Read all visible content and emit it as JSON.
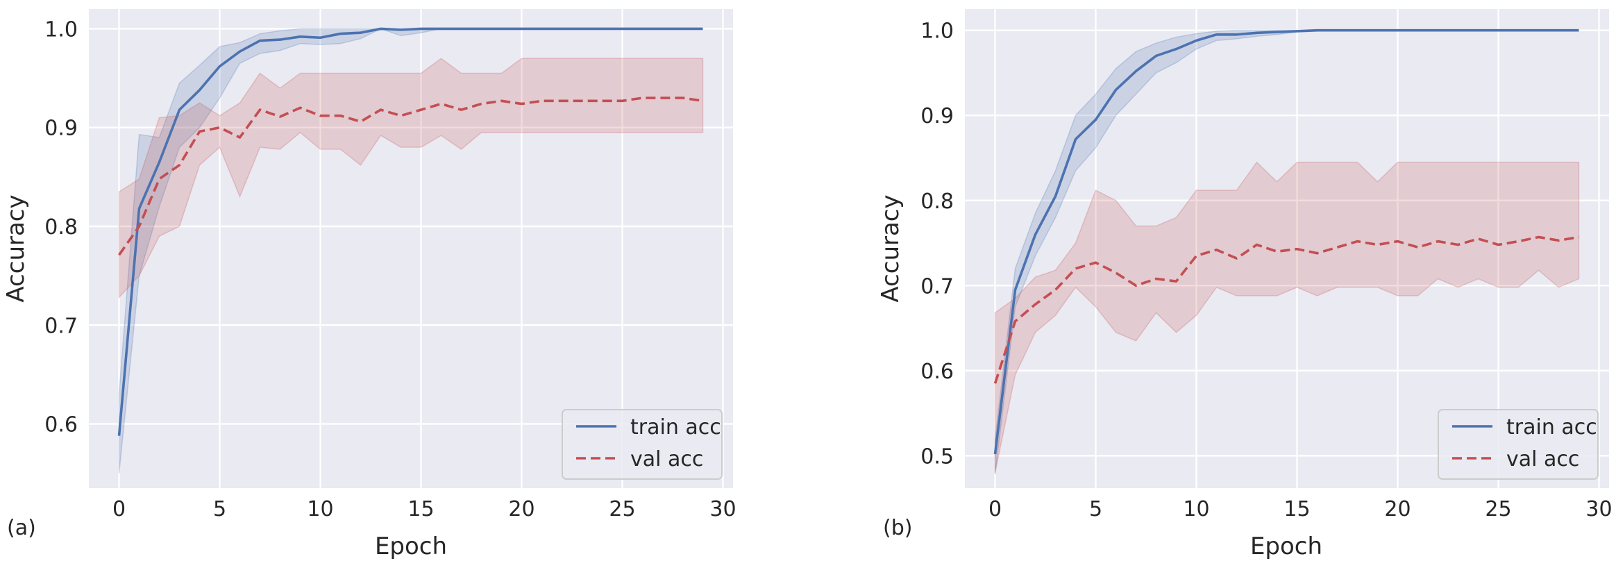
{
  "figure": {
    "panel_labels": [
      "(a)",
      "(b)"
    ]
  },
  "colors": {
    "background": "#eaeaf2",
    "grid": "#ffffff",
    "train": "#4c72b0",
    "val": "#c44e52",
    "text": "#262626",
    "legend_edge": "#cccccc"
  },
  "chart_data": [
    {
      "type": "line",
      "panel": "(a)",
      "xlabel": "Epoch",
      "ylabel": "Accuracy",
      "xlim": [
        -1.5,
        30.5
      ],
      "ylim": [
        0.535,
        1.02
      ],
      "xticks": [
        0,
        5,
        10,
        15,
        20,
        25,
        30
      ],
      "yticks": [
        0.6,
        0.7,
        0.8,
        0.9,
        1.0
      ],
      "grid": true,
      "legend_position": "lower-right",
      "x": [
        0,
        1,
        2,
        3,
        4,
        5,
        6,
        7,
        8,
        9,
        10,
        11,
        12,
        13,
        14,
        15,
        16,
        17,
        18,
        19,
        20,
        21,
        22,
        23,
        24,
        25,
        26,
        27,
        28,
        29
      ],
      "series": [
        {
          "name": "train acc",
          "style": "solid",
          "values": [
            0.588,
            0.818,
            0.865,
            0.918,
            0.938,
            0.962,
            0.977,
            0.988,
            0.989,
            0.992,
            0.991,
            0.995,
            0.996,
            1.0,
            0.999,
            1.0,
            1.0,
            1.0,
            1.0,
            1.0,
            1.0,
            1.0,
            1.0,
            1.0,
            1.0,
            1.0,
            1.0,
            1.0,
            1.0,
            1.0
          ],
          "lower": [
            0.55,
            0.75,
            0.82,
            0.88,
            0.9,
            0.93,
            0.965,
            0.975,
            0.978,
            0.985,
            0.984,
            0.985,
            0.99,
            1.0,
            0.993,
            0.996,
            1.0,
            1.0,
            1.0,
            1.0,
            1.0,
            1.0,
            1.0,
            1.0,
            1.0,
            1.0,
            1.0,
            1.0,
            1.0,
            1.0
          ],
          "upper": [
            0.63,
            0.893,
            0.89,
            0.945,
            0.963,
            0.982,
            0.986,
            0.995,
            0.998,
            1.0,
            1.0,
            1.0,
            1.0,
            1.0,
            1.0,
            1.0,
            1.0,
            1.0,
            1.0,
            1.0,
            1.0,
            1.0,
            1.0,
            1.0,
            1.0,
            1.0,
            1.0,
            1.0,
            1.0,
            1.0
          ]
        },
        {
          "name": "val acc",
          "style": "dashed",
          "values": [
            0.771,
            0.8,
            0.848,
            0.862,
            0.896,
            0.9,
            0.89,
            0.918,
            0.911,
            0.92,
            0.912,
            0.912,
            0.906,
            0.918,
            0.912,
            0.918,
            0.924,
            0.918,
            0.924,
            0.927,
            0.924,
            0.927,
            0.927,
            0.927,
            0.927,
            0.927,
            0.93,
            0.93,
            0.93,
            0.927
          ],
          "lower": [
            0.728,
            0.75,
            0.79,
            0.8,
            0.862,
            0.88,
            0.83,
            0.88,
            0.878,
            0.895,
            0.878,
            0.878,
            0.862,
            0.892,
            0.88,
            0.88,
            0.892,
            0.878,
            0.895,
            0.895,
            0.895,
            0.895,
            0.895,
            0.895,
            0.895,
            0.895,
            0.895,
            0.895,
            0.895,
            0.895
          ],
          "upper": [
            0.835,
            0.848,
            0.91,
            0.912,
            0.925,
            0.912,
            0.925,
            0.955,
            0.94,
            0.955,
            0.955,
            0.955,
            0.955,
            0.955,
            0.955,
            0.955,
            0.97,
            0.955,
            0.955,
            0.955,
            0.97,
            0.97,
            0.97,
            0.97,
            0.97,
            0.97,
            0.97,
            0.97,
            0.97,
            0.97
          ]
        }
      ]
    },
    {
      "type": "line",
      "panel": "(b)",
      "xlabel": "Epoch",
      "ylabel": "Accuracy",
      "xlim": [
        -1.5,
        30.5
      ],
      "ylim": [
        0.462,
        1.025
      ],
      "xticks": [
        0,
        5,
        10,
        15,
        20,
        25,
        30
      ],
      "yticks": [
        0.5,
        0.6,
        0.7,
        0.8,
        0.9,
        1.0
      ],
      "grid": true,
      "legend_position": "lower-right",
      "x": [
        0,
        1,
        2,
        3,
        4,
        5,
        6,
        7,
        8,
        9,
        10,
        11,
        12,
        13,
        14,
        15,
        16,
        17,
        18,
        19,
        20,
        21,
        22,
        23,
        24,
        25,
        26,
        27,
        28,
        29
      ],
      "series": [
        {
          "name": "train acc",
          "style": "solid",
          "values": [
            0.502,
            0.695,
            0.76,
            0.805,
            0.872,
            0.895,
            0.93,
            0.952,
            0.97,
            0.978,
            0.988,
            0.995,
            0.995,
            0.997,
            0.998,
            0.999,
            1.0,
            1.0,
            1.0,
            1.0,
            1.0,
            1.0,
            1.0,
            1.0,
            1.0,
            1.0,
            1.0,
            1.0,
            1.0,
            1.0
          ],
          "lower": [
            0.478,
            0.675,
            0.735,
            0.78,
            0.835,
            0.862,
            0.9,
            0.925,
            0.95,
            0.962,
            0.978,
            0.988,
            0.99,
            0.993,
            0.995,
            0.998,
            0.999,
            1.0,
            1.0,
            1.0,
            1.0,
            1.0,
            1.0,
            1.0,
            1.0,
            1.0,
            1.0,
            1.0,
            1.0,
            1.0
          ],
          "upper": [
            0.52,
            0.72,
            0.785,
            0.835,
            0.9,
            0.925,
            0.955,
            0.975,
            0.985,
            0.992,
            0.996,
            0.999,
            1.0,
            1.0,
            1.0,
            1.0,
            1.0,
            1.0,
            1.0,
            1.0,
            1.0,
            1.0,
            1.0,
            1.0,
            1.0,
            1.0,
            1.0,
            1.0,
            1.0,
            1.0
          ]
        },
        {
          "name": "val acc",
          "style": "dashed",
          "values": [
            0.585,
            0.658,
            0.678,
            0.695,
            0.72,
            0.727,
            0.715,
            0.7,
            0.708,
            0.705,
            0.735,
            0.742,
            0.732,
            0.748,
            0.74,
            0.743,
            0.738,
            0.745,
            0.752,
            0.748,
            0.752,
            0.745,
            0.752,
            0.748,
            0.755,
            0.748,
            0.752,
            0.757,
            0.753,
            0.757
          ],
          "lower": [
            0.48,
            0.595,
            0.645,
            0.665,
            0.698,
            0.675,
            0.645,
            0.635,
            0.668,
            0.645,
            0.665,
            0.698,
            0.688,
            0.688,
            0.688,
            0.698,
            0.688,
            0.698,
            0.698,
            0.698,
            0.688,
            0.688,
            0.708,
            0.698,
            0.708,
            0.698,
            0.698,
            0.718,
            0.698,
            0.708
          ],
          "upper": [
            0.668,
            0.685,
            0.71,
            0.718,
            0.75,
            0.812,
            0.8,
            0.77,
            0.77,
            0.78,
            0.812,
            0.812,
            0.812,
            0.845,
            0.822,
            0.845,
            0.845,
            0.845,
            0.845,
            0.822,
            0.845,
            0.845,
            0.845,
            0.845,
            0.845,
            0.845,
            0.845,
            0.845,
            0.845,
            0.845
          ]
        }
      ]
    }
  ]
}
